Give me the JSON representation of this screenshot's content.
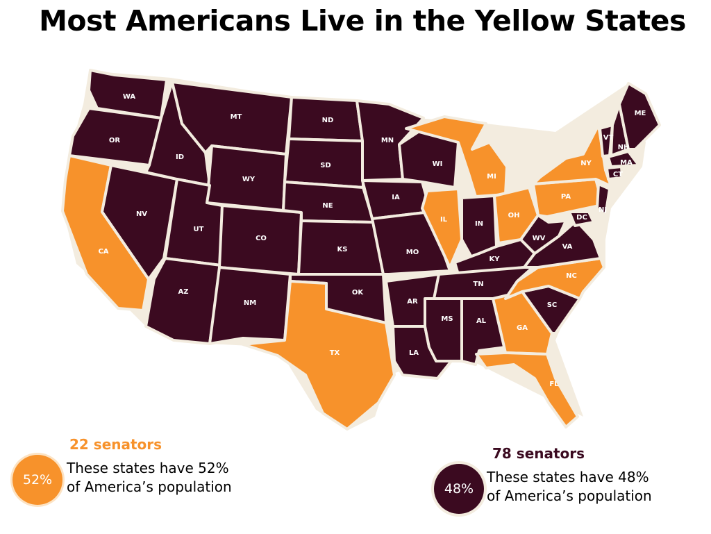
{
  "title": "Most Americans Live in the Yellow States",
  "colors": {
    "yellow_group": "#f7922b",
    "dark_group": "#3b0a20",
    "border": "#f3ecdf",
    "label": "#ffffff",
    "circle_ring_yellow": "#fce3c4",
    "circle_ring_dark": "#f3ecdf"
  },
  "map": {
    "states": [
      {
        "abbr": "WA",
        "group": "dark"
      },
      {
        "abbr": "OR",
        "group": "dark"
      },
      {
        "abbr": "CA",
        "group": "yellow"
      },
      {
        "abbr": "NV",
        "group": "dark"
      },
      {
        "abbr": "ID",
        "group": "dark"
      },
      {
        "abbr": "MT",
        "group": "dark"
      },
      {
        "abbr": "WY",
        "group": "dark"
      },
      {
        "abbr": "UT",
        "group": "dark"
      },
      {
        "abbr": "AZ",
        "group": "dark"
      },
      {
        "abbr": "CO",
        "group": "dark"
      },
      {
        "abbr": "NM",
        "group": "dark"
      },
      {
        "abbr": "ND",
        "group": "dark"
      },
      {
        "abbr": "SD",
        "group": "dark"
      },
      {
        "abbr": "NE",
        "group": "dark"
      },
      {
        "abbr": "KS",
        "group": "dark"
      },
      {
        "abbr": "OK",
        "group": "dark"
      },
      {
        "abbr": "TX",
        "group": "yellow"
      },
      {
        "abbr": "MN",
        "group": "dark"
      },
      {
        "abbr": "IA",
        "group": "dark"
      },
      {
        "abbr": "MO",
        "group": "dark"
      },
      {
        "abbr": "AR",
        "group": "dark"
      },
      {
        "abbr": "LA",
        "group": "dark"
      },
      {
        "abbr": "WI",
        "group": "dark"
      },
      {
        "abbr": "IL",
        "group": "yellow"
      },
      {
        "abbr": "MI",
        "group": "yellow"
      },
      {
        "abbr": "IN",
        "group": "dark"
      },
      {
        "abbr": "OH",
        "group": "yellow"
      },
      {
        "abbr": "KY",
        "group": "dark"
      },
      {
        "abbr": "TN",
        "group": "dark"
      },
      {
        "abbr": "MS",
        "group": "dark"
      },
      {
        "abbr": "AL",
        "group": "dark"
      },
      {
        "abbr": "GA",
        "group": "yellow"
      },
      {
        "abbr": "FL",
        "group": "yellow"
      },
      {
        "abbr": "SC",
        "group": "dark"
      },
      {
        "abbr": "NC",
        "group": "yellow"
      },
      {
        "abbr": "VA",
        "group": "dark"
      },
      {
        "abbr": "WV",
        "group": "dark"
      },
      {
        "abbr": "PA",
        "group": "yellow"
      },
      {
        "abbr": "NY",
        "group": "yellow"
      },
      {
        "abbr": "VT",
        "group": "dark"
      },
      {
        "abbr": "NH",
        "group": "dark"
      },
      {
        "abbr": "ME",
        "group": "dark"
      },
      {
        "abbr": "MA",
        "group": "dark"
      },
      {
        "abbr": "CT",
        "group": "dark"
      },
      {
        "abbr": "NJ",
        "group": "dark"
      },
      {
        "abbr": "DC",
        "group": "dark"
      }
    ]
  },
  "legend": {
    "yellow": {
      "senators": "22 senators",
      "percent": "52%",
      "line1": "These states have 52%",
      "line2": "of America’s population"
    },
    "dark": {
      "senators": "78 senators",
      "percent": "48%",
      "line1": "These states have 48%",
      "line2": "of America’s population"
    }
  }
}
